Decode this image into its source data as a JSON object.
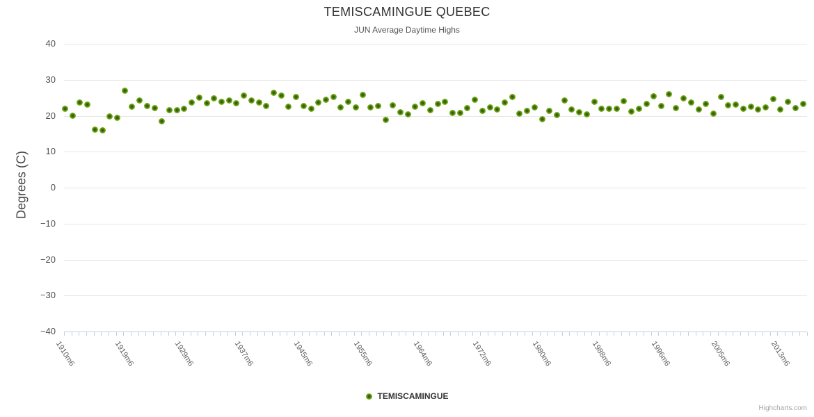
{
  "title": "TEMISCAMINGUE QUEBEC",
  "subtitle": "JUN Average Daytime Highs",
  "legend": {
    "label": "TEMISCAMINGUE"
  },
  "credits": "Highcharts.com",
  "colors": {
    "point_outer": "#8bbc21",
    "point_core": "#2f5c0c",
    "grid": "#e6e6e6",
    "axis": "#c0d0e0",
    "title_text": "#333333",
    "subtitle_text": "#555555",
    "y_label_text": "#4f4f4f",
    "x_label_text": "#5c5c5c",
    "credits_text": "#a5a5a5"
  },
  "chart_data": {
    "type": "scatter",
    "title": "TEMISCAMINGUE QUEBEC",
    "subtitle": "JUN Average Daytime Highs",
    "ylabel": "Degrees (C)",
    "xlabel": "",
    "ylim": [
      -40,
      40
    ],
    "y_ticks": [
      40,
      30,
      20,
      10,
      0,
      -10,
      -20,
      -30,
      -40
    ],
    "grid": "horizontal",
    "legend_position": "bottom-center",
    "x_tick_labels": [
      "1910m6",
      "1919m6",
      "1929m6",
      "1937m6",
      "1945m6",
      "1955m6",
      "1964m6",
      "1972m6",
      "1980m6",
      "1988m6",
      "1996m6",
      "2005m6",
      "2013m6"
    ],
    "x_tick_label_indices": [
      0,
      8,
      16,
      24,
      32,
      40,
      48,
      56,
      64,
      72,
      80,
      88,
      96
    ],
    "series": [
      {
        "name": "TEMISCAMINGUE",
        "values": [
          21.9,
          20.0,
          23.6,
          23.0,
          16.2,
          16.0,
          19.8,
          19.5,
          26.9,
          22.5,
          24.2,
          22.7,
          22.2,
          18.5,
          21.5,
          21.5,
          21.9,
          23.6,
          25.1,
          23.4,
          24.9,
          23.9,
          24.2,
          23.4,
          25.7,
          24.3,
          23.6,
          22.8,
          26.4,
          25.6,
          22.6,
          25.3,
          22.7,
          22.0,
          23.6,
          24.5,
          25.3,
          22.4,
          23.8,
          22.3,
          25.8,
          22.4,
          22.7,
          18.8,
          22.9,
          20.9,
          20.3,
          22.5,
          23.5,
          21.6,
          23.3,
          23.9,
          20.7,
          20.7,
          22.1,
          24.4,
          21.4,
          22.4,
          21.8,
          23.7,
          25.3,
          20.6,
          21.4,
          22.4,
          19.0,
          21.4,
          20.1,
          24.2,
          21.7,
          20.9,
          20.3,
          23.9,
          21.9,
          21.9,
          21.9,
          24.0,
          21.2,
          21.9,
          23.3,
          25.4,
          22.7,
          25.9,
          22.2,
          24.8,
          23.7,
          21.7,
          23.3,
          20.6,
          25.3,
          22.9,
          23.1,
          21.9,
          22.5,
          21.7,
          22.3,
          24.6,
          21.7,
          23.8,
          22.1,
          23.2
        ]
      }
    ]
  }
}
